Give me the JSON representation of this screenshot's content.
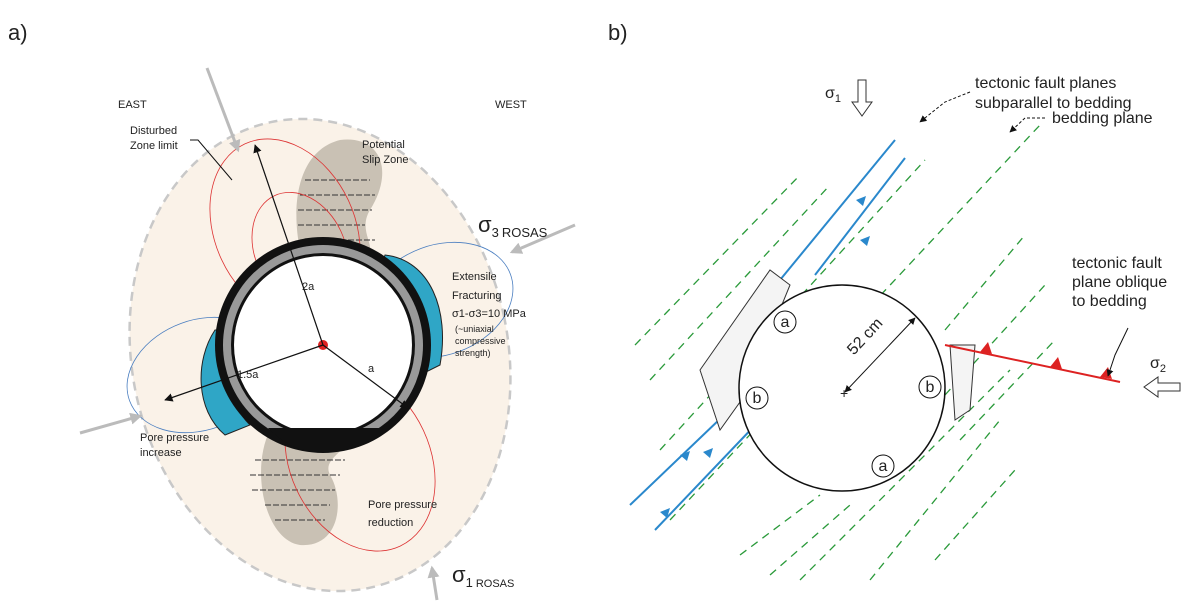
{
  "panel_a": {
    "label": "a)",
    "east": "EAST",
    "west": "WEST",
    "disturbed_zone": [
      "Disturbed",
      "Zone limit"
    ],
    "slip_zone": [
      "Potential",
      "Slip Zone"
    ],
    "sigma3": {
      "symbol": "σ",
      "subscript": "3",
      "suffix": "ROSAS"
    },
    "fracturing": [
      "Extensile",
      "Fracturing",
      "σ1-σ3=10 MPa",
      "(~uniaxial",
      "compressive",
      "strength)"
    ],
    "radius_2a": "2a",
    "radius_15a": "1.5a",
    "radius_a": "a",
    "pore_increase": [
      "Pore pressure",
      "increase"
    ],
    "pore_reduction": [
      "Pore pressure",
      "reduction"
    ],
    "sigma1": {
      "symbol": "σ",
      "subscript": "1",
      "suffix": "ROSAS"
    }
  },
  "panel_b": {
    "label": "b)",
    "sigma1": {
      "symbol": "σ",
      "subscript": "1"
    },
    "fault_subparallel": [
      "tectonic fault planes",
      "subparallel to bedding"
    ],
    "bedding_plane": "bedding plane",
    "fault_oblique": [
      "tectonic fault",
      "plane oblique",
      "to bedding"
    ],
    "sigma2": {
      "symbol": "σ",
      "subscript": "2"
    },
    "diameter": "52 cm",
    "zone_labels": [
      "a",
      "b",
      "b",
      "a"
    ]
  }
}
